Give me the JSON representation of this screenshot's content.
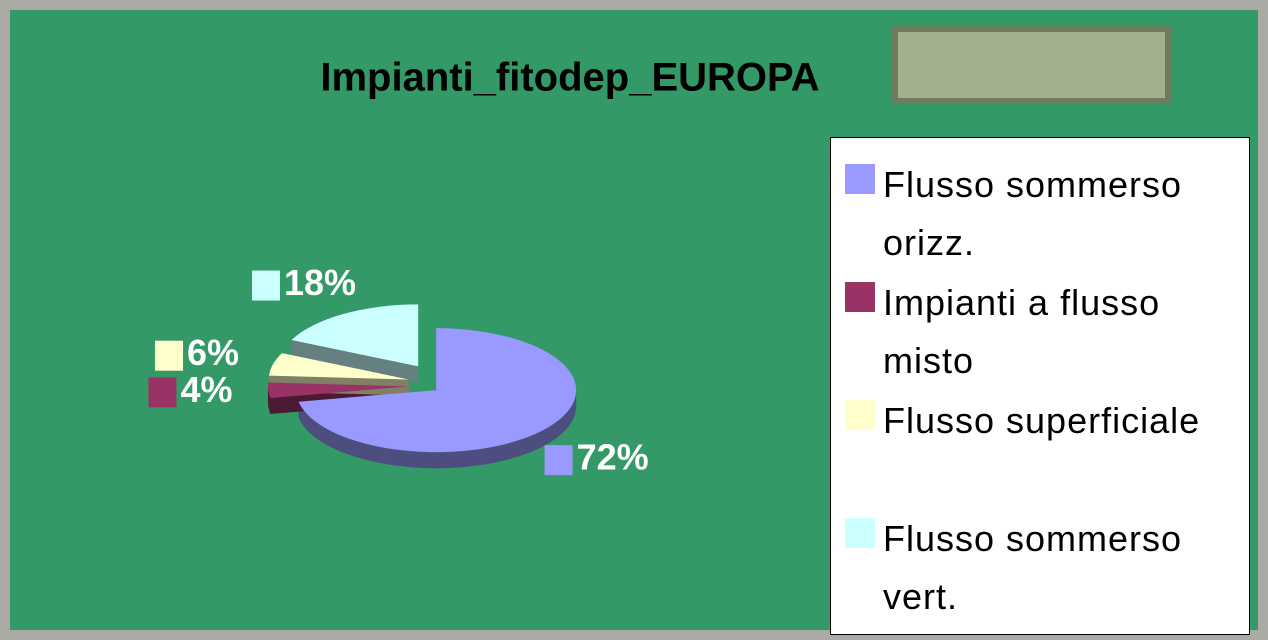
{
  "chart_data": {
    "type": "pie",
    "title": "Impianti_fitodep_EUROPA",
    "categories": [
      "Flusso sommerso orizz.",
      "Impianti a flusso misto",
      "Flusso superficiale",
      "Flusso sommerso vert."
    ],
    "values": [
      72,
      4,
      6,
      18
    ],
    "value_labels": [
      "72%",
      "4%",
      "6%",
      "18%"
    ],
    "colors": [
      "#9999ff",
      "#993366",
      "#ffffcc",
      "#ccffff"
    ],
    "legend": "right"
  }
}
